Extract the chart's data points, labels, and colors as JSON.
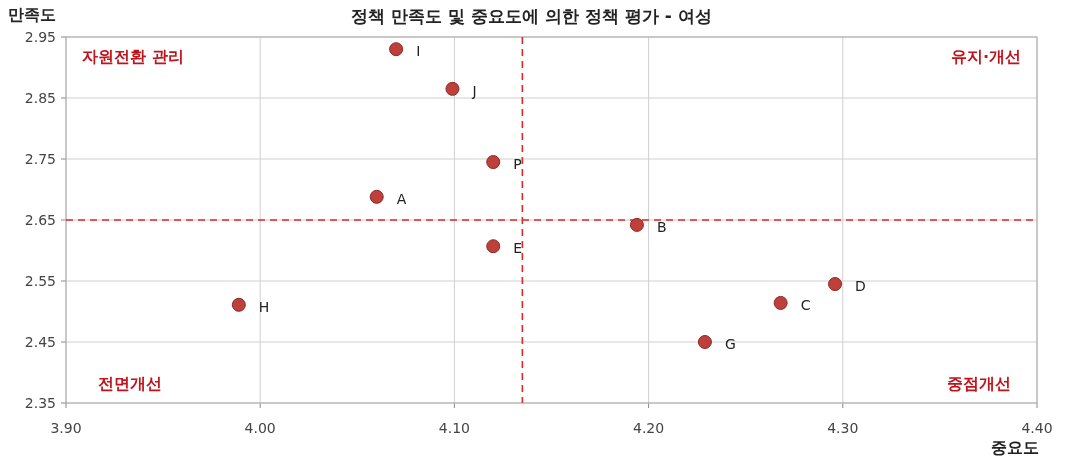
{
  "chart_data": {
    "type": "scatter",
    "title": "정책 만족도 및 중요도에 의한 정책 평가 - 여성",
    "xlabel": "중요도",
    "ylabel": "만족도",
    "series": [
      {
        "color": "#bf3f3a",
        "x": [
          4.07,
          4.099,
          4.12,
          4.06,
          4.12,
          4.194,
          3.989,
          4.296,
          4.268,
          4.229
        ],
        "values": [
          2.93,
          2.865,
          2.745,
          2.688,
          2.607,
          2.642,
          2.511,
          2.545,
          2.514,
          2.45
        ],
        "value_labels": [
          "I",
          "J",
          "P",
          "A",
          "E",
          "B",
          "H",
          "D",
          "C",
          "G"
        ]
      }
    ],
    "xlim": [
      3.9,
      4.4
    ],
    "xticks": [
      {
        "value": 3.9,
        "label": "3.90"
      },
      {
        "value": 4.0,
        "label": "4.00"
      },
      {
        "value": 4.1,
        "label": "4.10"
      },
      {
        "value": 4.2,
        "label": "4.20"
      },
      {
        "value": 4.3,
        "label": "4.30"
      },
      {
        "value": 4.4,
        "label": "4.40"
      }
    ],
    "ylim": [
      2.35,
      2.95
    ],
    "yticks": [
      {
        "value": 2.35,
        "label": "2.35"
      },
      {
        "value": 2.45,
        "label": "2.45"
      },
      {
        "value": 2.55,
        "label": "2.55"
      },
      {
        "value": 2.65,
        "label": "2.65"
      },
      {
        "value": 2.75,
        "label": "2.75"
      },
      {
        "value": 2.85,
        "label": "2.85"
      },
      {
        "value": 2.95,
        "label": "2.95"
      }
    ],
    "grid": true,
    "marker": "circle",
    "ref_lines": [
      {
        "axis": "x",
        "value": 4.135,
        "color": "#e02828",
        "line_style": "dashed"
      },
      {
        "axis": "y",
        "value": 2.65,
        "color": "#e02828",
        "line_style": "dashed"
      }
    ],
    "annotations": [
      "자원전환 관리",
      "유지·개선",
      "전면개선",
      "중점개선"
    ]
  }
}
